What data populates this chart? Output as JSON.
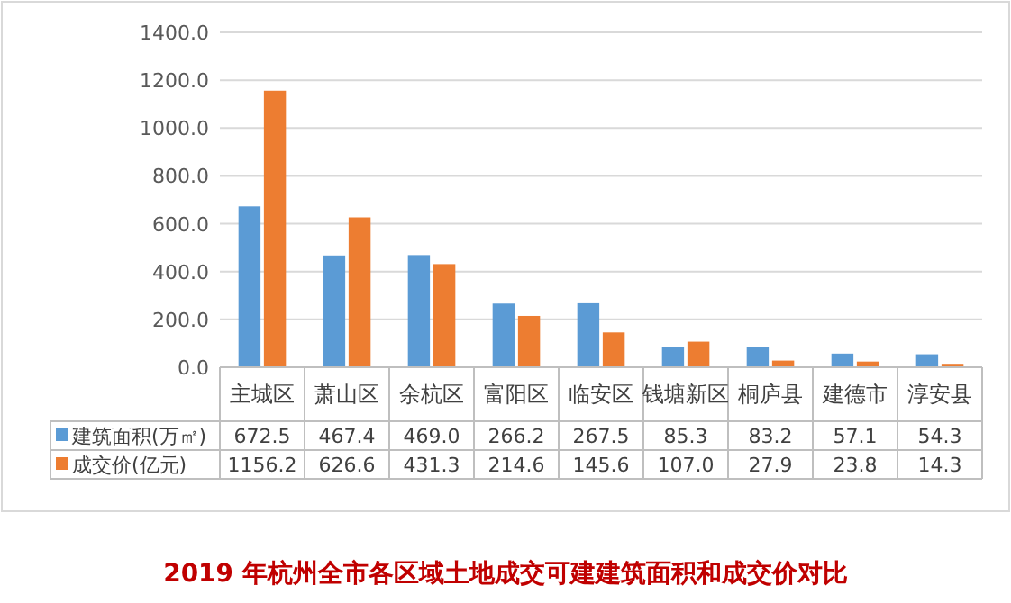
{
  "chart_data": {
    "type": "bar",
    "title": "2019 年杭州全市各区域土地成交可建建筑面积和成交价对比",
    "categories": [
      "主城区",
      "萧山区",
      "余杭区",
      "富阳区",
      "临安区",
      "钱塘新区",
      "桐庐县",
      "建德市",
      "淳安县"
    ],
    "series": [
      {
        "name": "建筑面积(万㎡)",
        "color": "#5b9bd5",
        "values": [
          672.5,
          467.4,
          469.0,
          266.2,
          267.5,
          85.3,
          83.2,
          57.1,
          54.3
        ],
        "value_labels": [
          "672.5",
          "467.4",
          "469.0",
          "266.2",
          "267.5",
          "85.3",
          "83.2",
          "57.1",
          "54.3"
        ]
      },
      {
        "name": "成交价(亿元)",
        "color": "#ed7d31",
        "values": [
          1156.2,
          626.6,
          431.3,
          214.6,
          145.6,
          107.0,
          27.9,
          23.8,
          14.3
        ],
        "value_labels": [
          "1156.2",
          "626.6",
          "431.3",
          "214.6",
          "145.6",
          "107.0",
          "27.9",
          "23.8",
          "14.3"
        ]
      }
    ],
    "ylim": [
      0,
      1400
    ],
    "yticks": [
      {
        "value": 0,
        "label": "0.0"
      },
      {
        "value": 200,
        "label": "200.0"
      },
      {
        "value": 400,
        "label": "400.0"
      },
      {
        "value": 600,
        "label": "600.0"
      },
      {
        "value": 800,
        "label": "800.0"
      },
      {
        "value": 1000,
        "label": "1000.0"
      },
      {
        "value": 1200,
        "label": "1200.0"
      },
      {
        "value": 1400,
        "label": "1400.0"
      }
    ],
    "grid": "y",
    "legend": "bottom"
  }
}
